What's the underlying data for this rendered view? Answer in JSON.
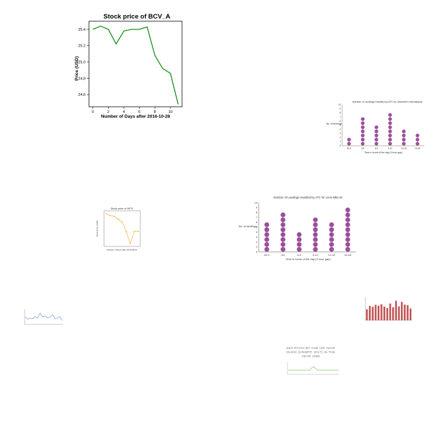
{
  "chart_data": [
    {
      "type": "line",
      "title": "Stock price of BCV_A",
      "xlabel": "Number of Days after 2016-10-28",
      "ylabel": "Price (USD)",
      "x": [
        0,
        1,
        2,
        3,
        4,
        5,
        6,
        7,
        8,
        9,
        10,
        11
      ],
      "series": [
        {
          "values": [
            25.4,
            25.44,
            25.4,
            25.22,
            25.38,
            25.4,
            25.4,
            25.43,
            25.08,
            24.92,
            24.86,
            24.48
          ]
        }
      ],
      "xticks": [
        0,
        2,
        4,
        6,
        8,
        10
      ],
      "yticks": [
        24.6,
        24.8,
        25.0,
        25.2,
        25.4
      ],
      "xlim": [
        -0.5,
        11.5
      ],
      "ylim": [
        24.45,
        25.5
      ],
      "color": "#1a8c1a",
      "grid": false
    },
    {
      "type": "scatter",
      "title": "Number of Landings Handled by ATC for Zaventem International",
      "xlabel": "Time in hours of the day (3 hour gap)",
      "ylabel": "No. of landings",
      "categories": [
        "00-3",
        "3-6",
        "6-9",
        "9-12",
        "12-15",
        "15-18"
      ],
      "values": [
        2,
        7,
        5,
        8,
        4,
        3
      ],
      "yticks": [
        0,
        1,
        2,
        3,
        4,
        5,
        6,
        7,
        8,
        9,
        10
      ],
      "ylim": [
        0,
        10
      ],
      "color": "#9b4f9b"
    },
    {
      "type": "line",
      "title": "Stock price of VIPS",
      "xlabel": "Number of Days after 2016-08-15",
      "ylabel": "Stock Price (USD)",
      "x": [
        0,
        1,
        2,
        3,
        4,
        5,
        6,
        7,
        8
      ],
      "series": [
        {
          "values": [
            15.3,
            15.1,
            15.0,
            14.7,
            14.4,
            13.4,
            12.1,
            13.4,
            13.4
          ]
        }
      ],
      "ylim": [
        11.8,
        15.6
      ],
      "color": "#f0b03c",
      "grid": false
    },
    {
      "type": "scatter",
      "title": "Number of Landings Handled by ATC for Léon-Mba Int",
      "xlabel": "Time in hours of the day (3 hour gap)",
      "ylabel": "No. of landings",
      "categories": [
        "00-3",
        "3-6",
        "6-9",
        "9-12",
        "12-15",
        "15-18"
      ],
      "values": [
        6,
        8,
        4,
        7,
        6,
        9
      ],
      "yticks": [
        0,
        1,
        2,
        3,
        4,
        5,
        6,
        7,
        8,
        9,
        10
      ],
      "ylim": [
        0,
        10
      ],
      "color": "#9b4f9b"
    },
    {
      "type": "line",
      "values": [
        5,
        3.5,
        4.2,
        3.8,
        5.2,
        4.1,
        7.4,
        4.9,
        5.6,
        4.3,
        4.7,
        6.5,
        3.8,
        4.2,
        5.1,
        2.5
      ],
      "ylim": [
        0,
        10
      ],
      "color": "#5a80c8"
    },
    {
      "type": "bar",
      "values": [
        5.2,
        6.8,
        6.4,
        7.3,
        6.9,
        7.6,
        6.5,
        5.8,
        7.9,
        6.2,
        9.2,
        6.6,
        8.7,
        7.4,
        7.1,
        5.6
      ],
      "ylim": [
        0,
        11
      ],
      "color": "#c05050"
    },
    {
      "type": "line",
      "title": "SEX RATIO BY AGE (30 YEAR OLDS) (UNWPP, 2017) IN THE YEAR 1995",
      "values": [
        1.0,
        1.0,
        1.0,
        1.0,
        1.0,
        1.0,
        1.9,
        1.0,
        1.0,
        1.0,
        1.0,
        1.0,
        1.0
      ],
      "ylim": [
        0,
        3
      ],
      "color": "#8ec26a"
    }
  ]
}
